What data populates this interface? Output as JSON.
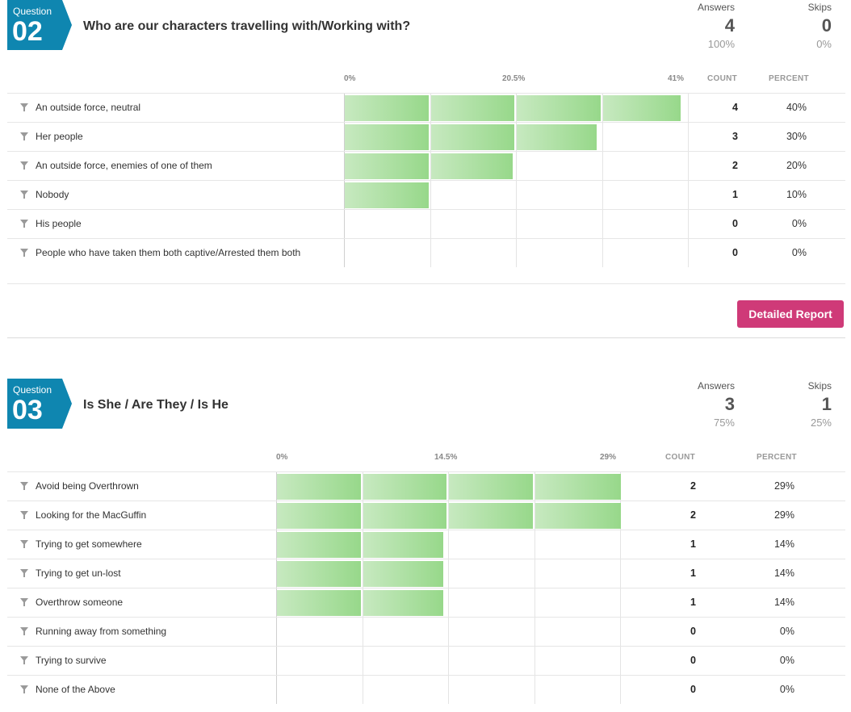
{
  "questions": [
    {
      "badge_label": "Question",
      "number": "02",
      "title": "Who are our characters travelling with/Working with?",
      "answers_label": "Answers",
      "answers_count": "4",
      "answers_pct": "100%",
      "skips_label": "Skips",
      "skips_count": "0",
      "skips_pct": "0%",
      "axis_ticks": [
        "0%",
        "20.5%",
        "41%"
      ],
      "count_header": "COUNT",
      "percent_header": "PERCENT",
      "rows": [
        {
          "label": "An outside force, neutral",
          "count": "4",
          "percent": "40%",
          "value": 40
        },
        {
          "label": "Her people",
          "count": "3",
          "percent": "30%",
          "value": 30
        },
        {
          "label": "An outside force, enemies of one of them",
          "count": "2",
          "percent": "20%",
          "value": 20
        },
        {
          "label": "Nobody",
          "count": "1",
          "percent": "10%",
          "value": 10
        },
        {
          "label": "His people",
          "count": "0",
          "percent": "0%",
          "value": 0
        },
        {
          "label": "People who have taken them both captive/Arrested them both",
          "count": "0",
          "percent": "0%",
          "value": 0
        }
      ],
      "axis_max": 41,
      "detail_button": "Detailed Report"
    },
    {
      "badge_label": "Question",
      "number": "03",
      "title": "Is She / Are They / Is He",
      "answers_label": "Answers",
      "answers_count": "3",
      "answers_pct": "75%",
      "skips_label": "Skips",
      "skips_count": "1",
      "skips_pct": "25%",
      "axis_ticks": [
        "0%",
        "14.5%",
        "29%"
      ],
      "count_header": "COUNT",
      "percent_header": "PERCENT",
      "rows": [
        {
          "label": "Avoid being Overthrown",
          "count": "2",
          "percent": "29%",
          "value": 29
        },
        {
          "label": "Looking for the MacGuffin",
          "count": "2",
          "percent": "29%",
          "value": 29
        },
        {
          "label": "Trying to get somewhere",
          "count": "1",
          "percent": "14%",
          "value": 14
        },
        {
          "label": "Trying to get un-lost",
          "count": "1",
          "percent": "14%",
          "value": 14
        },
        {
          "label": "Overthrow someone",
          "count": "1",
          "percent": "14%",
          "value": 14
        },
        {
          "label": "Running away from something",
          "count": "0",
          "percent": "0%",
          "value": 0
        },
        {
          "label": "Trying to survive",
          "count": "0",
          "percent": "0%",
          "value": 0
        },
        {
          "label": "None of the Above",
          "count": "0",
          "percent": "0%",
          "value": 0
        }
      ],
      "axis_max": 29
    }
  ],
  "colors": {
    "badge": "#0f86b0",
    "button": "#cf3a78",
    "bar_light": "#c7e9c0",
    "bar_dark": "#97d88a"
  },
  "icons": {
    "filter": "filter-icon"
  }
}
